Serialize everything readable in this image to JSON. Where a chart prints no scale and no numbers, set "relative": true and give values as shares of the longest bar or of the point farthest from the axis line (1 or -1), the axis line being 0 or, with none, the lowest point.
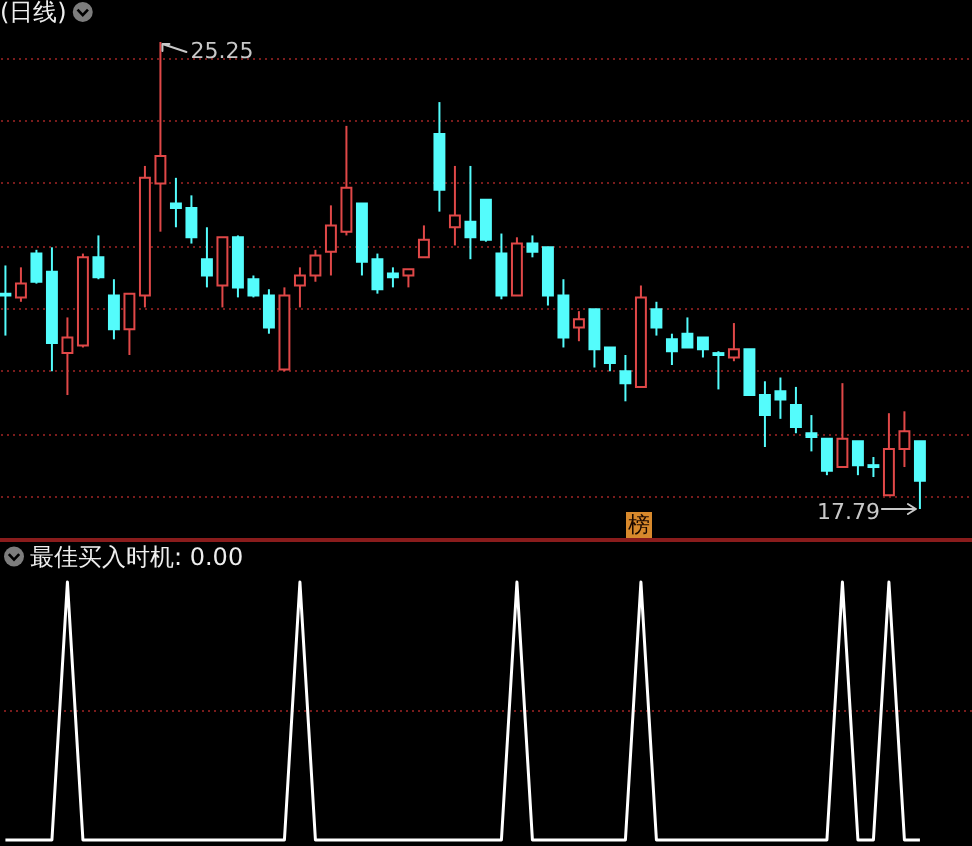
{
  "chart_data": [
    {
      "type": "candlestick",
      "title": "(日线)",
      "categories": [
        null,
        null,
        null,
        null,
        null,
        null,
        null,
        null,
        null,
        null,
        null,
        null,
        null,
        null,
        null,
        null,
        null,
        null,
        null,
        null,
        null,
        null,
        null,
        null,
        null,
        null,
        null,
        null,
        null,
        null,
        null,
        null,
        null,
        null,
        null,
        null,
        null,
        null,
        null,
        null,
        null,
        null,
        null,
        null,
        null,
        null,
        null,
        null,
        null,
        null,
        null,
        null,
        null,
        null,
        null,
        null,
        null,
        null,
        null,
        null
      ],
      "ohlc": [
        [
          21.23,
          21.68,
          20.56,
          21.2
        ],
        [
          21.17,
          21.65,
          21.1,
          21.39
        ],
        [
          21.87,
          21.93,
          21.39,
          21.42
        ],
        [
          21.58,
          21.97,
          19.99,
          20.44
        ],
        [
          20.28,
          20.85,
          19.61,
          20.53
        ],
        [
          20.4,
          21.87,
          20.37,
          21.81
        ],
        [
          21.81,
          22.16,
          21.46,
          21.49
        ],
        [
          21.2,
          21.46,
          20.5,
          20.66
        ],
        [
          20.66,
          21.23,
          20.25,
          21.23
        ],
        [
          21.2,
          23.27,
          21.01,
          23.08
        ],
        [
          22.99,
          25.25,
          22.22,
          23.43
        ],
        [
          22.67,
          23.08,
          22.29,
          22.6
        ],
        [
          22.6,
          22.8,
          22.03,
          22.13
        ],
        [
          21.78,
          22.29,
          21.33,
          21.52
        ],
        [
          21.36,
          22.13,
          21.01,
          22.13
        ],
        [
          22.13,
          22.16,
          21.17,
          21.33
        ],
        [
          21.46,
          21.52,
          21.17,
          21.2
        ],
        [
          21.2,
          21.3,
          20.59,
          20.69
        ],
        [
          20.02,
          21.33,
          19.99,
          21.2
        ],
        [
          21.36,
          21.65,
          21.01,
          21.52
        ],
        [
          21.52,
          21.93,
          21.42,
          21.84
        ],
        [
          21.9,
          22.64,
          21.52,
          22.32
        ],
        [
          22.22,
          23.91,
          22.16,
          22.92
        ],
        [
          22.67,
          22.67,
          21.52,
          21.74
        ],
        [
          21.78,
          21.87,
          21.23,
          21.3
        ],
        [
          21.55,
          21.65,
          21.33,
          21.49
        ],
        [
          21.52,
          21.62,
          21.33,
          21.62
        ],
        [
          21.81,
          22.32,
          21.81,
          22.09
        ],
        [
          23.78,
          24.29,
          22.54,
          22.89
        ],
        [
          22.29,
          23.27,
          22.0,
          22.48
        ],
        [
          22.38,
          23.27,
          21.78,
          22.13
        ],
        [
          22.73,
          22.73,
          22.06,
          22.09
        ],
        [
          21.87,
          22.19,
          21.14,
          21.2
        ],
        [
          21.2,
          22.13,
          21.2,
          22.03
        ],
        [
          22.03,
          22.16,
          21.81,
          21.9
        ],
        [
          21.97,
          21.97,
          21.04,
          21.2
        ],
        [
          21.2,
          21.46,
          20.37,
          20.53
        ],
        [
          20.69,
          20.95,
          20.47,
          20.82
        ],
        [
          20.98,
          20.98,
          20.05,
          20.34
        ],
        [
          20.37,
          20.37,
          19.99,
          20.12
        ],
        [
          19.99,
          20.25,
          19.51,
          19.8
        ],
        [
          19.74,
          21.36,
          19.74,
          21.17
        ],
        [
          20.98,
          21.1,
          20.56,
          20.69
        ],
        [
          20.5,
          20.59,
          20.09,
          20.31
        ],
        [
          20.59,
          20.85,
          20.37,
          20.37
        ],
        [
          20.53,
          20.53,
          20.21,
          20.34
        ],
        [
          20.28,
          20.31,
          19.7,
          20.25
        ],
        [
          20.21,
          20.76,
          20.15,
          20.34
        ],
        [
          20.34,
          20.34,
          19.61,
          19.61
        ],
        [
          19.61,
          19.83,
          18.78,
          19.29
        ],
        [
          19.67,
          19.89,
          19.23,
          19.54
        ],
        [
          19.45,
          19.74,
          19.0,
          19.1
        ],
        [
          19.0,
          19.29,
          18.71,
          18.94
        ],
        [
          18.91,
          18.91,
          18.33,
          18.4
        ],
        [
          18.46,
          19.8,
          18.46,
          18.91
        ],
        [
          18.87,
          18.87,
          18.33,
          18.49
        ],
        [
          18.49,
          18.62,
          18.3,
          18.46
        ],
        [
          18.01,
          19.32,
          18.01,
          18.75
        ],
        [
          18.75,
          19.35,
          18.46,
          19.03
        ],
        [
          18.87,
          18.87,
          17.79,
          18.24
        ]
      ],
      "colors": [
        "#54fcfc",
        "#e04848",
        "#54fcfc",
        "#54fcfc",
        "#e04848",
        "#e04848",
        "#54fcfc",
        "#54fcfc",
        "#e04848",
        "#e04848",
        "#e04848",
        "#54fcfc",
        "#54fcfc",
        "#54fcfc",
        "#e04848",
        "#54fcfc",
        "#54fcfc",
        "#54fcfc",
        "#e04848",
        "#e04848",
        "#e04848",
        "#e04848",
        "#e04848",
        "#54fcfc",
        "#54fcfc",
        "#54fcfc",
        "#e04848",
        "#e04848",
        "#54fcfc",
        "#e04848",
        "#54fcfc",
        "#54fcfc",
        "#54fcfc",
        "#e04848",
        "#54fcfc",
        "#54fcfc",
        "#54fcfc",
        "#e04848",
        "#54fcfc",
        "#54fcfc",
        "#54fcfc",
        "#e04848",
        "#54fcfc",
        "#54fcfc",
        "#54fcfc",
        "#54fcfc",
        "#54fcfc",
        "#e04848",
        "#54fcfc",
        "#54fcfc",
        "#54fcfc",
        "#54fcfc",
        "#54fcfc",
        "#54fcfc",
        "#e04848",
        "#54fcfc",
        "#54fcfc",
        "#e04848",
        "#e04848",
        "#54fcfc"
      ],
      "yticks": [
        {
          "value": 18,
          "label": null
        },
        {
          "value": 19,
          "label": null
        },
        {
          "value": 20,
          "label": null
        },
        {
          "value": 21,
          "label": null
        },
        {
          "value": 22,
          "label": null
        },
        {
          "value": 23,
          "label": null
        },
        {
          "value": 24,
          "label": null
        },
        {
          "value": 25,
          "label": null
        }
      ],
      "grid": true,
      "annotations": [
        "25.25",
        "17.79",
        "榜"
      ]
    },
    {
      "type": "line",
      "title": "最佳买入时机: 0.00",
      "categories": [
        null,
        null,
        null,
        null,
        null,
        null,
        null,
        null,
        null,
        null,
        null,
        null,
        null,
        null,
        null,
        null,
        null,
        null,
        null,
        null,
        null,
        null,
        null,
        null,
        null,
        null,
        null,
        null,
        null,
        null,
        null,
        null,
        null,
        null,
        null,
        null,
        null,
        null,
        null,
        null,
        null,
        null,
        null,
        null,
        null,
        null,
        null,
        null,
        null,
        null,
        null,
        null,
        null,
        null,
        null,
        null,
        null,
        null,
        null,
        null
      ],
      "series": [
        {
          "color": "#ffffff",
          "values": [
            0,
            0,
            0,
            0,
            1,
            0,
            0,
            0,
            0,
            0,
            0,
            0,
            0,
            0,
            0,
            0,
            0,
            0,
            0,
            1,
            0,
            0,
            0,
            0,
            0,
            0,
            0,
            0,
            0,
            0,
            0,
            0,
            0,
            1,
            0,
            0,
            0,
            0,
            0,
            0,
            0,
            1,
            0,
            0,
            0,
            0,
            0,
            0,
            0,
            0,
            0,
            0,
            0,
            0,
            1,
            0,
            0,
            1,
            0,
            0
          ]
        }
      ],
      "relative": true,
      "ref_lines": [
        {
          "axis": "y",
          "value": 0.5,
          "color": "#7a1c1c",
          "line_style": "dotted"
        }
      ]
    }
  ]
}
